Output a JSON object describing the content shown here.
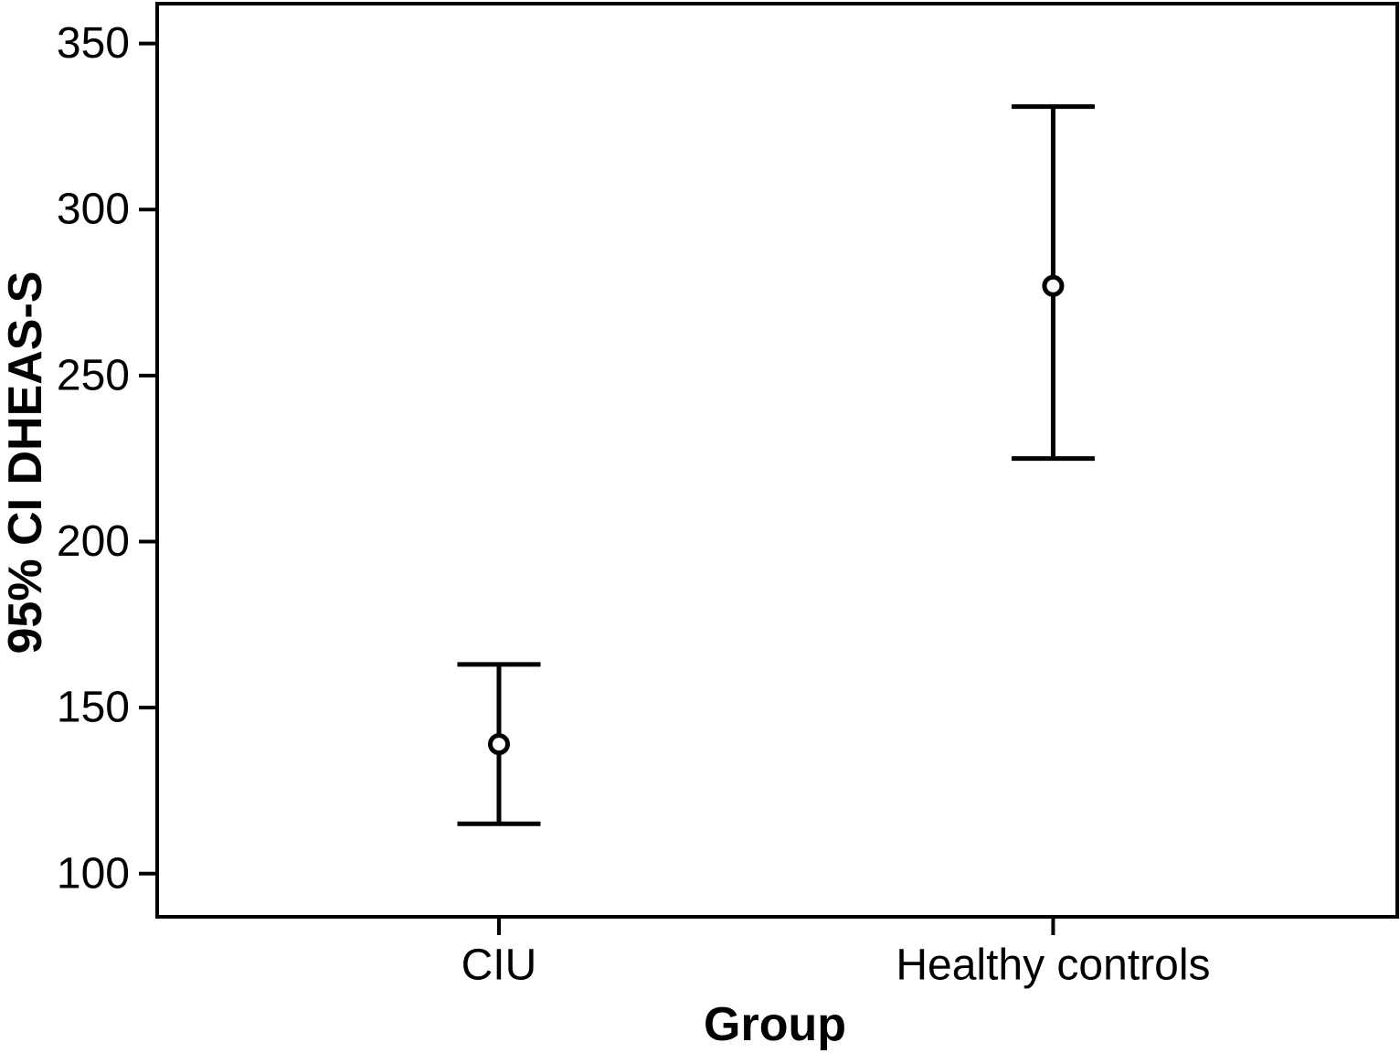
{
  "figure": {
    "background": "#ffffff",
    "ink_color": "#000000"
  },
  "chart_data": {
    "type": "errorbar",
    "title": "",
    "xlabel": "Group",
    "ylabel": "95% CI DHEAS-S",
    "categories": [
      "CIU",
      "Healthy controls"
    ],
    "series": [
      {
        "name": "95% CI DHEAS-S",
        "points": [
          {
            "category": "CIU",
            "mean": 139,
            "ci_low": 115,
            "ci_high": 163
          },
          {
            "category": "Healthy controls",
            "mean": 277,
            "ci_low": 225,
            "ci_high": 331
          }
        ]
      }
    ],
    "yticks": [
      100,
      150,
      200,
      250,
      300,
      350
    ],
    "ylim": [
      87,
      362
    ],
    "grid": false,
    "legend_position": "none",
    "marker": "open-circle"
  }
}
